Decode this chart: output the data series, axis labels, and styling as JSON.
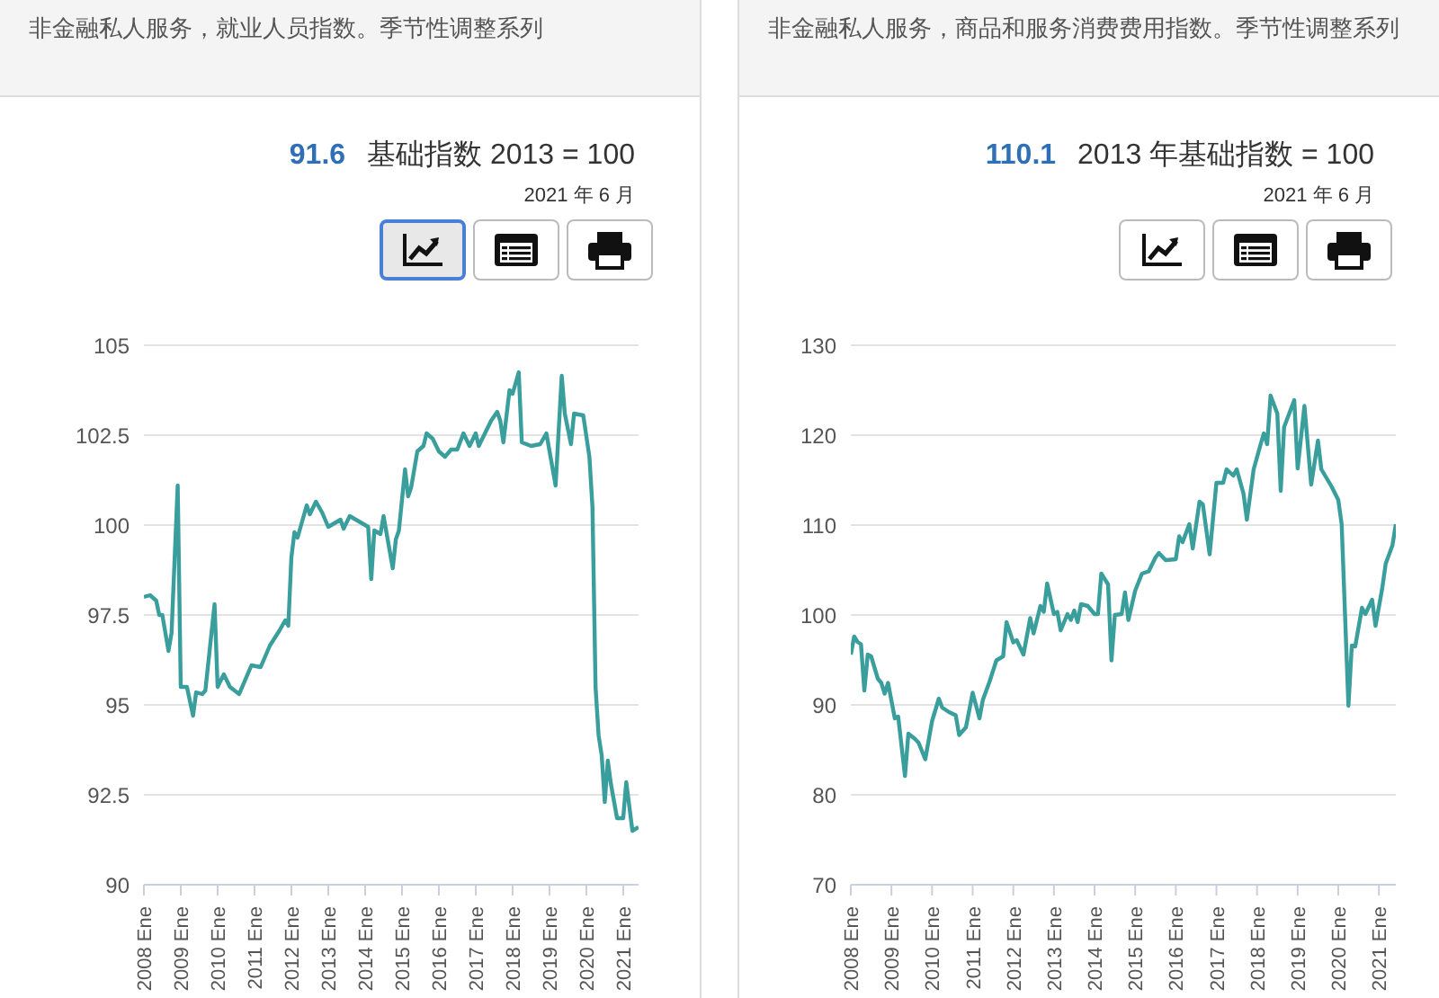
{
  "chart_data": [
    {
      "type": "line",
      "title": "非金融私人服务，就业人员指数。季节性调整系列",
      "subtitle": "基础指数 2013 = 100",
      "annotations": [
        "91.6",
        "2021 年 6 月"
      ],
      "x": [
        "2008-01",
        "2008-03",
        "2008-05",
        "2008-06",
        "2008-07",
        "2008-09",
        "2008-10",
        "2008-12",
        "2009-01",
        "2009-03",
        "2009-05",
        "2009-06",
        "2009-08",
        "2009-09",
        "2009-12",
        "2010-01",
        "2010-03",
        "2010-05",
        "2010-08",
        "2010-12",
        "2011-03",
        "2011-06",
        "2011-09",
        "2011-11",
        "2011-12",
        "2012-01",
        "2012-02",
        "2012-03",
        "2012-06",
        "2012-07",
        "2012-09",
        "2012-11",
        "2013-01",
        "2013-05",
        "2013-06",
        "2013-08",
        "2013-10",
        "2014-02",
        "2014-03",
        "2014-04",
        "2014-06",
        "2014-07",
        "2014-10",
        "2014-11",
        "2014-12",
        "2015-02",
        "2015-03",
        "2015-04",
        "2015-06",
        "2015-08",
        "2015-09",
        "2015-11",
        "2016-01",
        "2016-03",
        "2016-05",
        "2016-07",
        "2016-09",
        "2016-11",
        "2017-01",
        "2017-02",
        "2017-06",
        "2017-08",
        "2017-09",
        "2017-10",
        "2017-12",
        "2018-01",
        "2018-03",
        "2018-04",
        "2018-07",
        "2018-10",
        "2018-12",
        "2019-03",
        "2019-05",
        "2019-06",
        "2019-08",
        "2019-09",
        "2019-12",
        "2020-02",
        "2020-03",
        "2020-04",
        "2020-05",
        "2020-06",
        "2020-07",
        "2020-08",
        "2020-09",
        "2020-11",
        "2021-01",
        "2021-02",
        "2021-04",
        "2021-06"
      ],
      "series": [
        {
          "color": "#3a9e9c",
          "values": [
            98.0,
            98.05,
            97.9,
            97.5,
            97.5,
            96.5,
            97.0,
            101.1,
            95.5,
            95.5,
            94.7,
            95.35,
            95.3,
            95.4,
            97.8,
            95.5,
            95.85,
            95.5,
            95.3,
            96.1,
            96.05,
            96.65,
            97.05,
            97.35,
            97.2,
            99.1,
            99.8,
            99.65,
            100.55,
            100.3,
            100.65,
            100.35,
            99.95,
            100.15,
            99.9,
            100.25,
            100.15,
            99.95,
            98.5,
            99.85,
            99.75,
            100.25,
            98.8,
            99.6,
            99.85,
            101.55,
            100.8,
            101.05,
            102.05,
            102.2,
            102.55,
            102.4,
            102.05,
            101.9,
            102.1,
            102.1,
            102.55,
            102.2,
            102.55,
            102.2,
            102.9,
            103.15,
            102.9,
            102.3,
            103.75,
            103.65,
            104.25,
            102.3,
            102.2,
            102.25,
            102.55,
            101.1,
            104.15,
            103.1,
            102.25,
            103.1,
            103.05,
            101.9,
            100.5,
            95.5,
            94.15,
            93.6,
            92.3,
            93.45,
            92.8,
            91.85,
            91.85,
            92.85,
            91.5,
            91.6
          ]
        }
      ],
      "xlim": [
        "2008-01",
        "2021-06"
      ],
      "xticks": [
        {
          "value": "2008-01",
          "label": "2008 Ene"
        },
        {
          "value": "2009-01",
          "label": "2009 Ene"
        },
        {
          "value": "2010-01",
          "label": "2010 Ene"
        },
        {
          "value": "2011-01",
          "label": "2011 Ene"
        },
        {
          "value": "2012-01",
          "label": "2012 Ene"
        },
        {
          "value": "2013-01",
          "label": "2013 Ene"
        },
        {
          "value": "2014-01",
          "label": "2014 Ene"
        },
        {
          "value": "2015-01",
          "label": "2015 Ene"
        },
        {
          "value": "2016-01",
          "label": "2016 Ene"
        },
        {
          "value": "2017-01",
          "label": "2017 Ene"
        },
        {
          "value": "2018-01",
          "label": "2018 Ene"
        },
        {
          "value": "2019-01",
          "label": "2019 Ene"
        },
        {
          "value": "2020-01",
          "label": "2020 Ene"
        },
        {
          "value": "2021-01",
          "label": "2021 Ene"
        }
      ],
      "ylim": [
        90,
        105
      ],
      "yticks": [
        90,
        92.5,
        95,
        97.5,
        100,
        102.5,
        105
      ],
      "grid": "y"
    },
    {
      "type": "line",
      "title": "非金融私人服务，商品和服务消费费用指数。季节性调整系列",
      "subtitle": "2013 年基础指数 = 100",
      "annotations": [
        "110.1",
        "2021 年 6 月"
      ],
      "x": [
        "2008-01",
        "2008-02",
        "2008-03",
        "2008-04",
        "2008-05",
        "2008-06",
        "2008-07",
        "2008-09",
        "2008-10",
        "2008-11",
        "2008-12",
        "2009-02",
        "2009-03",
        "2009-05",
        "2009-06",
        "2009-08",
        "2009-09",
        "2009-11",
        "2010-01",
        "2010-03",
        "2010-04",
        "2010-06",
        "2010-08",
        "2010-09",
        "2010-11",
        "2011-01",
        "2011-03",
        "2011-04",
        "2011-06",
        "2011-08",
        "2011-10",
        "2011-11",
        "2012-01",
        "2012-02",
        "2012-04",
        "2012-06",
        "2012-07",
        "2012-09",
        "2012-10",
        "2012-11",
        "2013-01",
        "2013-02",
        "2013-03",
        "2013-05",
        "2013-06",
        "2013-07",
        "2013-08",
        "2013-09",
        "2013-11",
        "2014-01",
        "2014-02",
        "2014-03",
        "2014-05",
        "2014-06",
        "2014-07",
        "2014-09",
        "2014-10",
        "2014-11",
        "2015-01",
        "2015-03",
        "2015-05",
        "2015-07",
        "2015-08",
        "2015-10",
        "2016-01",
        "2016-02",
        "2016-03",
        "2016-05",
        "2016-06",
        "2016-08",
        "2016-09",
        "2016-11",
        "2017-01",
        "2017-03",
        "2017-04",
        "2017-06",
        "2017-07",
        "2017-09",
        "2017-10",
        "2017-12",
        "2018-02",
        "2018-03",
        "2018-04",
        "2018-05",
        "2018-07",
        "2018-08",
        "2018-09",
        "2018-12",
        "2019-01",
        "2019-03",
        "2019-05",
        "2019-07",
        "2019-08",
        "2019-11",
        "2020-01",
        "2020-02",
        "2020-04",
        "2020-05",
        "2020-06",
        "2020-08",
        "2020-09",
        "2020-11",
        "2020-12",
        "2021-02",
        "2021-03",
        "2021-05",
        "2021-06"
      ],
      "series": [
        {
          "color": "#3a9e9c",
          "values": [
            95.6,
            97.6,
            97.0,
            96.75,
            91.6,
            95.6,
            95.4,
            92.9,
            92.45,
            91.25,
            92.45,
            88.5,
            88.7,
            82.1,
            86.8,
            86.2,
            85.8,
            83.95,
            88.2,
            90.7,
            89.7,
            89.2,
            88.85,
            86.65,
            87.5,
            91.35,
            88.5,
            90.55,
            92.6,
            94.95,
            95.4,
            99.2,
            96.95,
            97.2,
            95.6,
            99.65,
            97.95,
            101.0,
            100.35,
            103.5,
            100.1,
            100.35,
            98.3,
            100.1,
            99.45,
            100.5,
            99.2,
            101.2,
            101.0,
            100.1,
            100.1,
            104.6,
            103.4,
            94.95,
            100.0,
            100.1,
            102.5,
            99.45,
            102.7,
            104.6,
            104.85,
            106.4,
            106.9,
            106.1,
            106.2,
            108.75,
            108.1,
            110.1,
            107.4,
            112.6,
            112.3,
            106.75,
            114.7,
            114.7,
            116.2,
            115.5,
            116.2,
            113.5,
            110.6,
            116.2,
            118.9,
            120.2,
            119.0,
            124.4,
            122.4,
            113.8,
            120.9,
            123.9,
            116.3,
            123.25,
            114.5,
            119.4,
            116.2,
            114.3,
            112.8,
            110.1,
            89.9,
            96.6,
            96.5,
            100.8,
            100.1,
            101.7,
            98.8,
            103.0,
            105.7,
            107.75,
            110.1
          ]
        }
      ],
      "xlim": [
        "2008-01",
        "2021-06"
      ],
      "xticks": [
        {
          "value": "2008-01",
          "label": "2008 Ene"
        },
        {
          "value": "2009-01",
          "label": "2009 Ene"
        },
        {
          "value": "2010-01",
          "label": "2010 Ene"
        },
        {
          "value": "2011-01",
          "label": "2011 Ene"
        },
        {
          "value": "2012-01",
          "label": "2012 Ene"
        },
        {
          "value": "2013-01",
          "label": "2013 Ene"
        },
        {
          "value": "2014-01",
          "label": "2014 Ene"
        },
        {
          "value": "2015-01",
          "label": "2015 Ene"
        },
        {
          "value": "2016-01",
          "label": "2016 Ene"
        },
        {
          "value": "2017-01",
          "label": "2017 Ene"
        },
        {
          "value": "2018-01",
          "label": "2018 Ene"
        },
        {
          "value": "2019-01",
          "label": "2019 Ene"
        },
        {
          "value": "2020-01",
          "label": "2020 Ene"
        },
        {
          "value": "2021-01",
          "label": "2021 Ene"
        }
      ],
      "ylim": [
        70,
        130
      ],
      "yticks": [
        70,
        80,
        90,
        100,
        110,
        120,
        130
      ],
      "grid": "y"
    }
  ]
}
